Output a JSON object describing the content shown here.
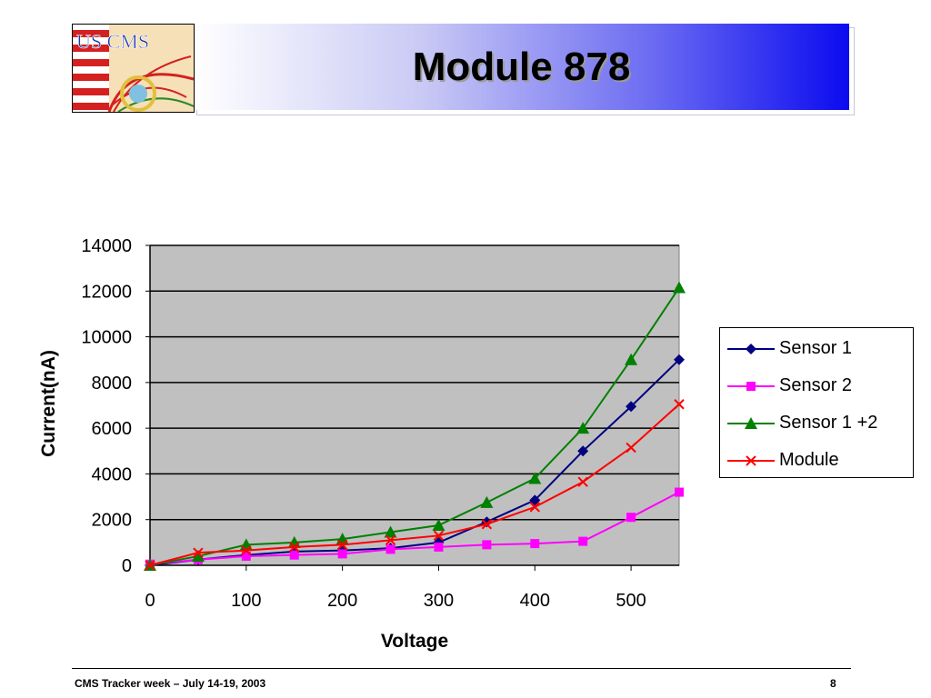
{
  "slide": {
    "title": "Module 878",
    "footer_left": "CMS Tracker week – July 14-19, 2003",
    "page_number": "8",
    "logo_text": "US CMS"
  },
  "chart_data": {
    "type": "line",
    "title": "",
    "xlabel": "Voltage",
    "ylabel": "Current(nA)",
    "xlim": [
      0,
      550
    ],
    "ylim": [
      0,
      14000
    ],
    "xticks": [
      0,
      100,
      200,
      300,
      400,
      500
    ],
    "yticks": [
      0,
      2000,
      4000,
      6000,
      8000,
      10000,
      12000,
      14000
    ],
    "grid": "horizontal",
    "plot_background": "#c0c0c0",
    "legend_position": "right",
    "series": [
      {
        "name": "Sensor 1",
        "color": "#000080",
        "marker": "diamond",
        "x": [
          0,
          50,
          100,
          150,
          200,
          250,
          300,
          350,
          400,
          450,
          500,
          550
        ],
        "y": [
          0,
          250,
          450,
          600,
          650,
          750,
          1000,
          1900,
          2850,
          5000,
          6950,
          9000
        ]
      },
      {
        "name": "Sensor 2",
        "color": "#ff00ff",
        "marker": "square",
        "x": [
          0,
          50,
          100,
          150,
          200,
          250,
          300,
          350,
          400,
          450,
          500,
          550
        ],
        "y": [
          50,
          250,
          400,
          450,
          500,
          700,
          800,
          900,
          950,
          1050,
          2100,
          3200
        ]
      },
      {
        "name": "Sensor 1 +2",
        "color": "#008000",
        "marker": "triangle",
        "x": [
          0,
          50,
          100,
          150,
          200,
          250,
          300,
          350,
          400,
          450,
          500,
          550
        ],
        "y": [
          0,
          400,
          900,
          1000,
          1150,
          1450,
          1750,
          2750,
          3800,
          6000,
          9000,
          12150
        ]
      },
      {
        "name": "Module",
        "color": "#ff0000",
        "marker": "x",
        "x": [
          0,
          50,
          100,
          150,
          200,
          250,
          300,
          350,
          400,
          450,
          500,
          550
        ],
        "y": [
          0,
          550,
          650,
          800,
          900,
          1100,
          1300,
          1800,
          2550,
          3650,
          5150,
          7050
        ]
      }
    ]
  }
}
